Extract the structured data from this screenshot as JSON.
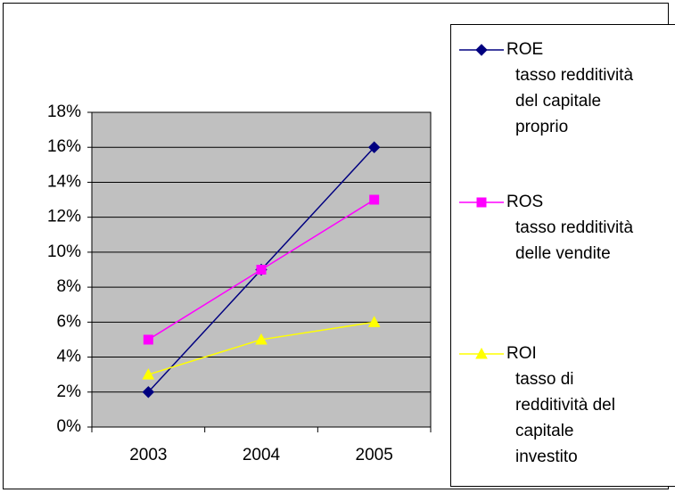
{
  "chart_data": {
    "type": "line",
    "categories": [
      "2003",
      "2004",
      "2005"
    ],
    "series": [
      {
        "name": "ROE\ntasso redditività\ndel capitale\nproprio",
        "color": "#000080",
        "marker": "diamond",
        "values": [
          2,
          9,
          16
        ]
      },
      {
        "name": "ROS\ntasso redditività\ndelle vendite",
        "color": "#ff00ff",
        "marker": "square",
        "values": [
          5,
          9,
          13
        ]
      },
      {
        "name": "ROI\ntasso di\nredditività del\ncapitale\ninvestito",
        "color": "#ffff00",
        "marker": "triangle",
        "values": [
          3,
          5,
          6
        ]
      }
    ],
    "ylim": [
      0,
      18
    ],
    "yticks": [
      {
        "value": 0,
        "label": "0%"
      },
      {
        "value": 2,
        "label": "2%"
      },
      {
        "value": 4,
        "label": "4%"
      },
      {
        "value": 6,
        "label": "6%"
      },
      {
        "value": 8,
        "label": "8%"
      },
      {
        "value": 10,
        "label": "10%"
      },
      {
        "value": 12,
        "label": "12%"
      },
      {
        "value": 14,
        "label": "14%"
      },
      {
        "value": 16,
        "label": "16%"
      },
      {
        "value": 18,
        "label": "18%"
      }
    ],
    "grid": true,
    "plot_background": "#c0c0c0",
    "legend": "right"
  }
}
